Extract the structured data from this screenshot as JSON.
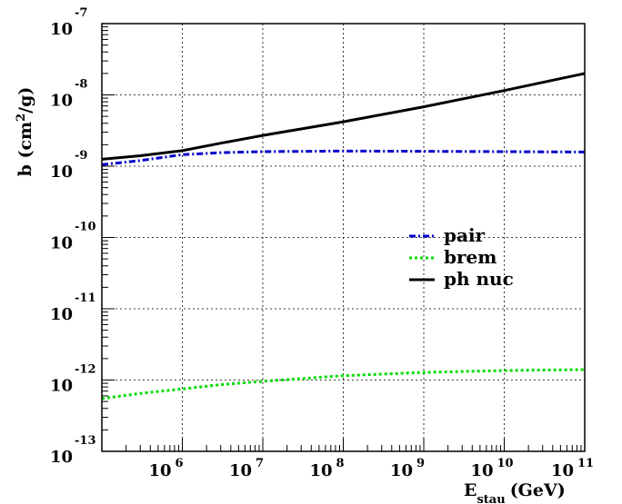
{
  "chart_data": {
    "type": "line",
    "title": "",
    "xlabel": {
      "main": "E",
      "sub": "stau",
      "unit": "(GeV)"
    },
    "ylabel": {
      "main": "b (cm",
      "sup": "2",
      "unit": "/g)"
    },
    "xscale": "log",
    "yscale": "log",
    "xlim": [
      100000,
      100000000000
    ],
    "ylim": [
      1e-13,
      1e-07
    ],
    "grid": true,
    "legend_position": "center-right",
    "x_ticks": [
      {
        "value": 1000000,
        "base": "10",
        "exp": "6"
      },
      {
        "value": 10000000,
        "base": "10",
        "exp": "7"
      },
      {
        "value": 100000000,
        "base": "10",
        "exp": "8"
      },
      {
        "value": 1000000000,
        "base": "10",
        "exp": "9"
      },
      {
        "value": 10000000000,
        "base": "10",
        "exp": "10"
      },
      {
        "value": 100000000000,
        "base": "10",
        "exp": "11"
      }
    ],
    "y_ticks": [
      {
        "value": 1e-13,
        "base": "10",
        "exp": "-13"
      },
      {
        "value": 1e-12,
        "base": "10",
        "exp": "-12"
      },
      {
        "value": 1e-11,
        "base": "10",
        "exp": "-11"
      },
      {
        "value": 1e-10,
        "base": "10",
        "exp": "-10"
      },
      {
        "value": 1e-09,
        "base": "10",
        "exp": "-9"
      },
      {
        "value": 1e-08,
        "base": "10",
        "exp": "-8"
      },
      {
        "value": 1e-07,
        "base": "10",
        "exp": "-7"
      }
    ],
    "series": [
      {
        "name": "pair",
        "color": "#0000cc",
        "style": "dash-dot",
        "x": [
          100000,
          300000,
          1000000,
          3000000,
          10000000,
          100000000,
          1000000000,
          10000000000,
          100000000000
        ],
        "y": [
          1.05e-09,
          1.2e-09,
          1.45e-09,
          1.55e-09,
          1.6e-09,
          1.63e-09,
          1.62e-09,
          1.6e-09,
          1.58e-09
        ]
      },
      {
        "name": "brem",
        "color": "#00dd00",
        "style": "dotted",
        "x": [
          100000,
          300000,
          1000000,
          3000000,
          10000000,
          100000000,
          1000000000,
          10000000000,
          100000000000
        ],
        "y": [
          5.5e-13,
          6.5e-13,
          7.5e-13,
          8.6e-13,
          9.6e-13,
          1.15e-12,
          1.28e-12,
          1.36e-12,
          1.4e-12
        ]
      },
      {
        "name": "ph nuc",
        "color": "#000000",
        "style": "solid",
        "x": [
          100000,
          300000,
          1000000,
          3000000,
          10000000,
          100000000,
          1000000000,
          10000000000,
          100000000000
        ],
        "y": [
          1.25e-09,
          1.4e-09,
          1.65e-09,
          2.1e-09,
          2.7e-09,
          4.2e-09,
          6.8e-09,
          1.15e-08,
          2e-08
        ]
      }
    ]
  }
}
